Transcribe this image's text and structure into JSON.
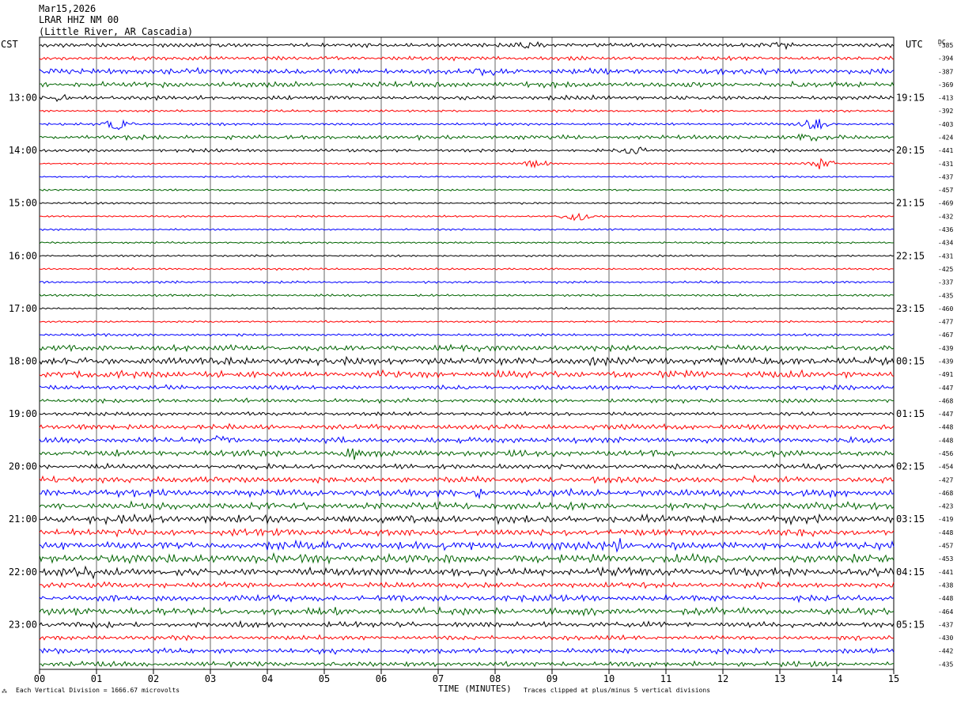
{
  "header": {
    "date": "Mar15,2026",
    "station": "LRAR HHZ NM 00",
    "location": "(Little River, AR Cascadia)"
  },
  "timezone_left": "CST",
  "timezone_right": "UTC",
  "dc_label": "DC",
  "footer": {
    "vertical_division": "Each Vertical Division = 1666.67 microvolts",
    "xlabel": "TIME (MINUTES)",
    "clip_note": "Traces clipped at plus/minus 5 vertical divisions",
    "corner_mark": "⁂"
  },
  "colors": {
    "trace_cycle": [
      "#000000",
      "#ff0000",
      "#0000ff",
      "#006400"
    ],
    "grid": "#000000"
  },
  "chart_data": {
    "type": "line",
    "title": "Mar15,2026 LRAR HHZ NM 00 (Little River, AR Cascadia)",
    "xlabel": "TIME (MINUTES)",
    "ylabel": "",
    "xlim": [
      0,
      15
    ],
    "x_ticks": [
      "00",
      "01",
      "02",
      "03",
      "04",
      "05",
      "06",
      "07",
      "08",
      "09",
      "10",
      "11",
      "12",
      "13",
      "14",
      "15"
    ],
    "left_time_labels": [
      "13:00",
      "14:00",
      "15:00",
      "16:00",
      "17:00",
      "18:00",
      "19:00",
      "20:00",
      "21:00",
      "22:00",
      "23:00"
    ],
    "right_time_labels": [
      "19:15",
      "20:15",
      "21:15",
      "22:15",
      "23:15",
      "00:15",
      "01:15",
      "02:15",
      "03:15",
      "04:15",
      "05:15"
    ],
    "row_dc_offsets": [
      -385,
      -394,
      -387,
      -369,
      -413,
      -392,
      -403,
      -424,
      -441,
      -431,
      -437,
      -457,
      -469,
      -432,
      -436,
      -434,
      -431,
      -425,
      -337,
      -435,
      -460,
      -477,
      -467,
      -439,
      -439,
      -491,
      -447,
      -468,
      -447,
      -448,
      -448,
      -456,
      -454,
      -427,
      -468,
      -423,
      -419,
      -448,
      -457,
      -453,
      -441,
      -438,
      -448,
      -464,
      -437,
      -430,
      -442,
      -435
    ],
    "row_activity": [
      2.0,
      1.9,
      2.6,
      2.5,
      2.0,
      1.2,
      1.3,
      2.0,
      1.6,
      1.0,
      0.9,
      1.0,
      1.0,
      1.0,
      1.0,
      1.0,
      1.0,
      1.1,
      1.2,
      1.2,
      1.0,
      1.0,
      1.3,
      2.6,
      3.2,
      3.0,
      2.2,
      2.0,
      1.8,
      2.4,
      2.6,
      2.8,
      2.4,
      2.8,
      3.0,
      3.2,
      3.4,
      3.0,
      3.4,
      3.6,
      3.4,
      2.6,
      2.8,
      3.2,
      2.6,
      2.2,
      2.4,
      2.4
    ],
    "events": [
      {
        "row": 0,
        "minute": 8.6,
        "amp": 2.5
      },
      {
        "row": 0,
        "minute": 13.0,
        "amp": 2.2
      },
      {
        "row": 2,
        "minute": 7.8,
        "amp": 2.5
      },
      {
        "row": 3,
        "minute": 13.3,
        "amp": 2.0
      },
      {
        "row": 4,
        "minute": 0.4,
        "amp": 2.0
      },
      {
        "row": 6,
        "minute": 1.4,
        "amp": 4.0
      },
      {
        "row": 6,
        "minute": 13.6,
        "amp": 4.0
      },
      {
        "row": 7,
        "minute": 13.5,
        "amp": 2.5
      },
      {
        "row": 8,
        "minute": 10.4,
        "amp": 4.0
      },
      {
        "row": 9,
        "minute": 8.7,
        "amp": 2.5
      },
      {
        "row": 9,
        "minute": 13.7,
        "amp": 3.5
      },
      {
        "row": 13,
        "minute": 9.4,
        "amp": 4.0
      },
      {
        "row": 30,
        "minute": 3.2,
        "amp": 3.0
      },
      {
        "row": 31,
        "minute": 5.5,
        "amp": 3.0
      },
      {
        "row": 34,
        "minute": 7.7,
        "amp": 3.0
      },
      {
        "row": 38,
        "minute": 10.1,
        "amp": 3.5
      },
      {
        "row": 40,
        "minute": 0.8,
        "amp": 3.0
      }
    ],
    "clip_divisions": 5,
    "vertical_division_microvolts": 1666.67,
    "grid": true
  }
}
